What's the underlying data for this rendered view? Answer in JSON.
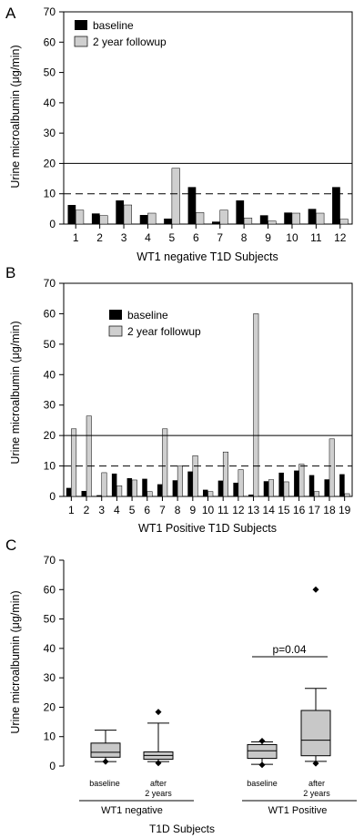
{
  "colors": {
    "baseline": "#000000",
    "followup": "#cfcfcf",
    "box": "#c8c8c8"
  },
  "chart_data": [
    {
      "panel": "A",
      "type": "bar",
      "categories": [
        "1",
        "2",
        "3",
        "4",
        "5",
        "6",
        "7",
        "8",
        "9",
        "10",
        "11",
        "12"
      ],
      "series": [
        {
          "name": "baseline",
          "values": [
            6.3,
            3.5,
            7.8,
            3.0,
            1.8,
            12.2,
            0.8,
            7.8,
            2.9,
            3.8,
            5.0,
            12.2
          ]
        },
        {
          "name": "2 year followup",
          "values": [
            4.6,
            2.8,
            6.3,
            3.6,
            18.4,
            3.8,
            4.6,
            2.0,
            1.0,
            3.6,
            3.6,
            1.6
          ]
        }
      ],
      "ylabel": "Urine microalbumin (μg/min)",
      "xlabel": "WT1 negative T1D Subjects",
      "ylim": [
        0,
        70
      ],
      "yticks": [
        "0",
        "10",
        "20",
        "30",
        "40",
        "50",
        "60",
        "70"
      ],
      "reference_lines": [
        {
          "y": 20,
          "style": "solid"
        },
        {
          "y": 10,
          "style": "dashed"
        }
      ],
      "legend": "top-left"
    },
    {
      "panel": "B",
      "type": "bar",
      "categories": [
        "1",
        "2",
        "3",
        "4",
        "5",
        "6",
        "7",
        "8",
        "9",
        "10",
        "11",
        "12",
        "13",
        "14",
        "15",
        "16",
        "17",
        "18",
        "19"
      ],
      "series": [
        {
          "name": "baseline",
          "values": [
            2.8,
            1.8,
            0.4,
            7.5,
            6.0,
            5.8,
            4.0,
            5.3,
            8.2,
            2.2,
            5.2,
            4.5,
            0.6,
            5.0,
            7.8,
            8.5,
            7.0,
            5.6,
            7.3
          ]
        },
        {
          "name": "2 year followup",
          "values": [
            22.2,
            26.4,
            7.8,
            3.5,
            5.4,
            1.6,
            22.2,
            10.0,
            13.4,
            1.6,
            14.6,
            8.8,
            60.0,
            5.5,
            4.8,
            10.6,
            1.6,
            18.9,
            0.9
          ]
        }
      ],
      "ylabel": "Urine microalbumin (μg/min)",
      "xlabel": "WT1 Positive T1D Subjects",
      "ylim": [
        0,
        70
      ],
      "yticks": [
        "0",
        "10",
        "20",
        "30",
        "40",
        "50",
        "60",
        "70"
      ],
      "reference_lines": [
        {
          "y": 20,
          "style": "solid"
        },
        {
          "y": 10,
          "style": "dashed"
        }
      ],
      "legend": "top-left"
    },
    {
      "panel": "C",
      "type": "box",
      "categories": [
        "baseline",
        "after 2 years",
        "baseline",
        "after 2 years"
      ],
      "groups": [
        "WT1 negative",
        "WT1 Positive"
      ],
      "boxes": [
        {
          "whisker_low": 1.5,
          "q1": 3.0,
          "median": 4.7,
          "q3": 7.8,
          "whisker_high": 12.2,
          "outliers": [
            1.5
          ]
        },
        {
          "whisker_low": 1.5,
          "q1": 2.3,
          "median": 3.6,
          "q3": 4.8,
          "whisker_high": 14.6,
          "outliers": [
            1.0,
            18.4
          ]
        },
        {
          "whisker_low": 0.6,
          "q1": 2.6,
          "median": 5.2,
          "q3": 7.3,
          "whisker_high": 8.2,
          "outliers": [
            0.4,
            8.5
          ]
        },
        {
          "whisker_low": 1.6,
          "q1": 3.5,
          "median": 8.8,
          "q3": 18.9,
          "whisker_high": 26.4,
          "outliers": [
            0.9,
            60.0
          ]
        }
      ],
      "annotation": "p=0.04",
      "ylabel": "Urine microalbumin (μg/min)",
      "xlabel": "T1D Subjects",
      "ylim": [
        0,
        70
      ],
      "yticks": [
        "0",
        "10",
        "20",
        "30",
        "40",
        "50",
        "60",
        "70"
      ]
    }
  ]
}
